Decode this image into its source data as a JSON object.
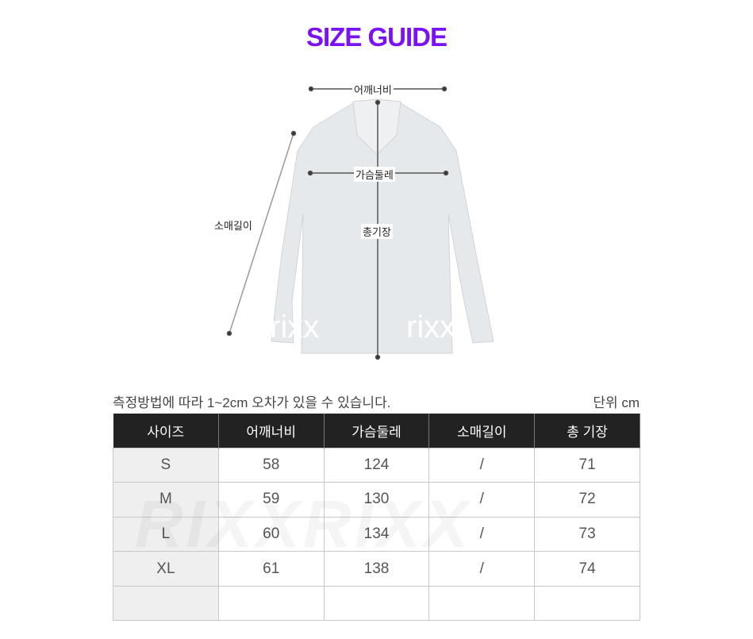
{
  "title": "SIZE GUIDE",
  "diagram": {
    "shoulder": "어깨너비",
    "chest": "가슴둘레",
    "sleeve": "소매길이",
    "length": "총기장",
    "watermark": "rixx"
  },
  "note": "측정방법에 따라 1~2cm 오차가 있을 수 있습니다.",
  "unit": "단위 cm",
  "table": {
    "headers": [
      "사이즈",
      "어깨너비",
      "가슴둘레",
      "소매길이",
      "총 기장"
    ],
    "rows": [
      [
        "S",
        "58",
        "124",
        "/",
        "71"
      ],
      [
        "M",
        "59",
        "130",
        "/",
        "72"
      ],
      [
        "L",
        "60",
        "134",
        "/",
        "73"
      ],
      [
        "XL",
        "61",
        "138",
        "/",
        "74"
      ],
      [
        "",
        "",
        "",
        "",
        ""
      ]
    ],
    "watermark": "RIXXRIXX"
  },
  "colors": {
    "accent": "#7b12f5",
    "header_bg": "#222222"
  }
}
